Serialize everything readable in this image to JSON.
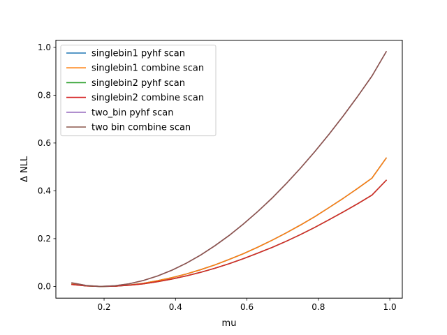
{
  "chart_data": {
    "type": "line",
    "title": "",
    "xlabel": "mu",
    "ylabel": "Δ NLL",
    "xlim": [
      0.065,
      1.035
    ],
    "ylim": [
      -0.049,
      1.03
    ],
    "xticks": [
      {
        "value": 0.2,
        "label": "0.2"
      },
      {
        "value": 0.4,
        "label": "0.4"
      },
      {
        "value": 0.6,
        "label": "0.6"
      },
      {
        "value": 0.8,
        "label": "0.8"
      },
      {
        "value": 1.0,
        "label": "1.0"
      }
    ],
    "yticks": [
      {
        "value": 0.0,
        "label": "0.0"
      },
      {
        "value": 0.2,
        "label": "0.2"
      },
      {
        "value": 0.4,
        "label": "0.4"
      },
      {
        "value": 0.6,
        "label": "0.6"
      },
      {
        "value": 0.8,
        "label": "0.8"
      },
      {
        "value": 1.0,
        "label": "1.0"
      }
    ],
    "grid": false,
    "legend_position": "top-left",
    "x": [
      0.11,
      0.15,
      0.19,
      0.23,
      0.27,
      0.31,
      0.35,
      0.39,
      0.43,
      0.47,
      0.51,
      0.55,
      0.59,
      0.63,
      0.67,
      0.71,
      0.75,
      0.79,
      0.83,
      0.87,
      0.91,
      0.95,
      0.99
    ],
    "series": [
      {
        "name": "singlebin1 pyhf scan",
        "color": "#1f77b4",
        "values": [
          0.01,
          0.002,
          0.0,
          0.001,
          0.006,
          0.013,
          0.024,
          0.037,
          0.052,
          0.07,
          0.09,
          0.113,
          0.137,
          0.164,
          0.193,
          0.224,
          0.257,
          0.292,
          0.33,
          0.369,
          0.41,
          0.453,
          0.537
        ]
      },
      {
        "name": "singlebin1 combine scan",
        "color": "#ff7f0e",
        "values": [
          0.01,
          0.002,
          0.0,
          0.001,
          0.006,
          0.013,
          0.024,
          0.037,
          0.052,
          0.07,
          0.09,
          0.113,
          0.137,
          0.164,
          0.193,
          0.224,
          0.257,
          0.292,
          0.33,
          0.369,
          0.41,
          0.453,
          0.537
        ]
      },
      {
        "name": "singlebin2 pyhf scan",
        "color": "#2ca02c",
        "values": [
          0.008,
          0.002,
          0.0,
          0.001,
          0.005,
          0.011,
          0.02,
          0.031,
          0.044,
          0.059,
          0.076,
          0.095,
          0.116,
          0.139,
          0.163,
          0.189,
          0.217,
          0.247,
          0.279,
          0.312,
          0.346,
          0.382,
          0.444
        ]
      },
      {
        "name": "singlebin2 combine scan",
        "color": "#d62728",
        "values": [
          0.008,
          0.002,
          0.0,
          0.001,
          0.005,
          0.011,
          0.02,
          0.031,
          0.044,
          0.059,
          0.076,
          0.095,
          0.116,
          0.139,
          0.163,
          0.189,
          0.217,
          0.247,
          0.279,
          0.312,
          0.346,
          0.382,
          0.444
        ]
      },
      {
        "name": "two_bin pyhf scan",
        "color": "#9467bd",
        "values": [
          0.015,
          0.004,
          0.0,
          0.003,
          0.011,
          0.025,
          0.044,
          0.068,
          0.097,
          0.131,
          0.17,
          0.213,
          0.261,
          0.313,
          0.369,
          0.43,
          0.495,
          0.564,
          0.637,
          0.714,
          0.795,
          0.88,
          0.982
        ]
      },
      {
        "name": "two bin combine scan",
        "color": "#8c564b",
        "values": [
          0.015,
          0.004,
          0.0,
          0.003,
          0.011,
          0.025,
          0.044,
          0.068,
          0.097,
          0.131,
          0.17,
          0.213,
          0.261,
          0.313,
          0.369,
          0.43,
          0.495,
          0.564,
          0.637,
          0.714,
          0.795,
          0.88,
          0.982
        ]
      }
    ]
  }
}
